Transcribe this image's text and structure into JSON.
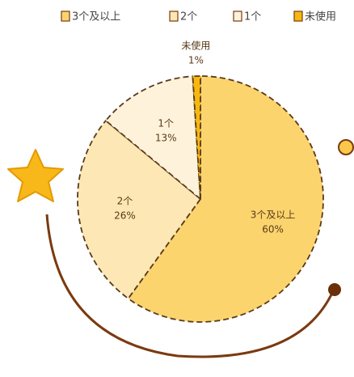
{
  "chart_data": {
    "type": "pie",
    "categories": [
      "3个及以上",
      "2个",
      "1个",
      "未使用"
    ],
    "values": [
      60,
      26,
      13,
      1
    ],
    "value_labels": [
      "60%",
      "26%",
      "13%",
      "1%"
    ],
    "colors": [
      "#fcd46e",
      "#fde7b4",
      "#fef2da",
      "#f6b80f"
    ],
    "legend": "top"
  }
}
